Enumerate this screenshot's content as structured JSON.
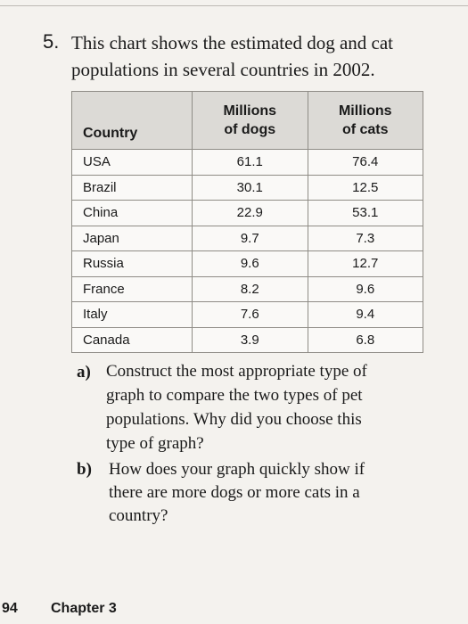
{
  "question": {
    "number": "5.",
    "text": "This chart shows the estimated dog and cat populations in several countries in 2002."
  },
  "table": {
    "headers": {
      "country": "Country",
      "dogs_line1": "Millions",
      "dogs_line2": "of dogs",
      "cats_line1": "Millions",
      "cats_line2": "of cats"
    },
    "rows": [
      {
        "country": "USA",
        "dogs": "61.1",
        "cats": "76.4"
      },
      {
        "country": "Brazil",
        "dogs": "30.1",
        "cats": "12.5"
      },
      {
        "country": "China",
        "dogs": "22.9",
        "cats": "53.1"
      },
      {
        "country": "Japan",
        "dogs": "9.7",
        "cats": "7.3"
      },
      {
        "country": "Russia",
        "dogs": "9.6",
        "cats": "12.7"
      },
      {
        "country": "France",
        "dogs": "8.2",
        "cats": "9.6"
      },
      {
        "country": "Italy",
        "dogs": "7.6",
        "cats": "9.4"
      },
      {
        "country": "Canada",
        "dogs": "3.9",
        "cats": "6.8"
      }
    ]
  },
  "parts": {
    "a": {
      "letter": "a)",
      "lines": [
        "Construct the most appropriate type of",
        "graph to compare the two types of pet",
        "populations. Why did you choose this",
        "type of graph?"
      ]
    },
    "b": {
      "letter": "b)",
      "lines": [
        "How does your graph quickly show if",
        "there are more dogs or more cats in a",
        "country?"
      ]
    }
  },
  "footer": {
    "page_number": "94",
    "chapter": "Chapter 3"
  }
}
